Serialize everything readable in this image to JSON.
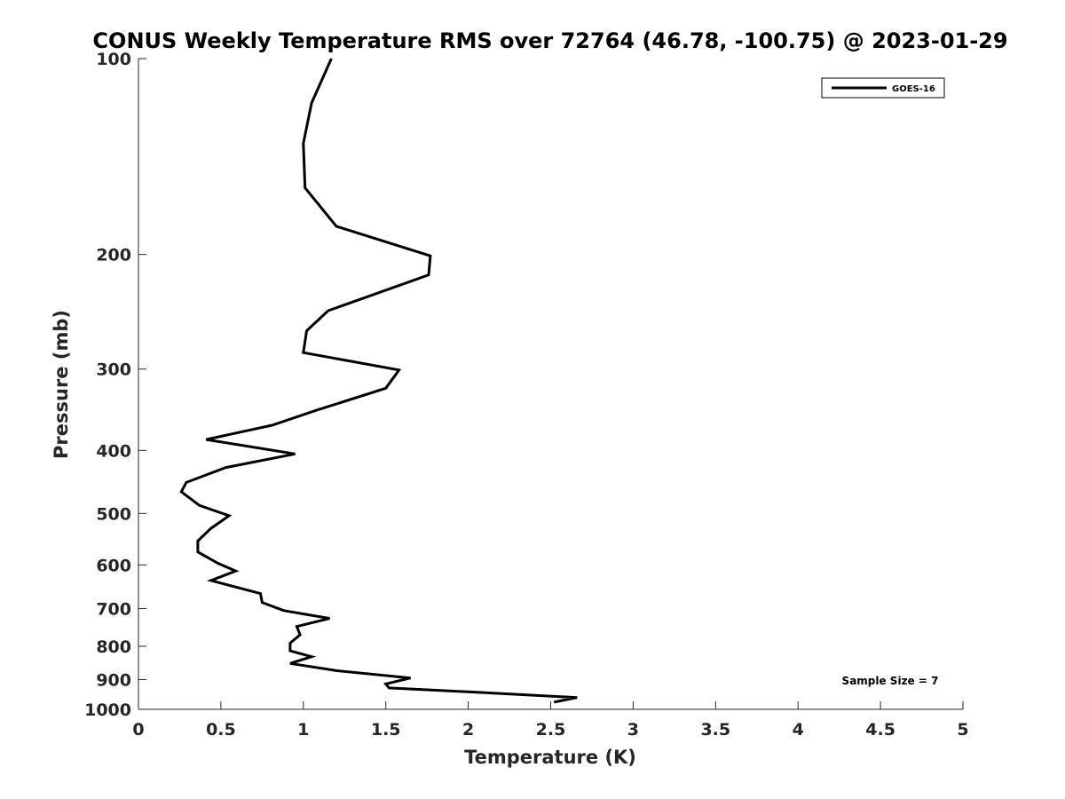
{
  "chart_data": {
    "type": "line",
    "title": "CONUS Weekly Temperature RMS over 72764 (46.78, -100.75) @ 2023-01-29",
    "xlabel": "Temperature (K)",
    "ylabel": "Pressure (mb)",
    "xlim": [
      0,
      5
    ],
    "ylim": [
      100,
      1000
    ],
    "y_scale": "log",
    "y_reversed": true,
    "x_ticks": [
      "0",
      "0.5",
      "1",
      "1.5",
      "2",
      "2.5",
      "3",
      "3.5",
      "4",
      "4.5",
      "5"
    ],
    "y_ticks": [
      "100",
      "200",
      "300",
      "400",
      "500",
      "600",
      "700",
      "800",
      "900",
      "1000"
    ],
    "grid": false,
    "legend_position": "top-right",
    "annotation": "Sample Size = 7",
    "series": [
      {
        "name": "GOES-16",
        "color": "#000000",
        "points": [
          [
            1.17,
            100
          ],
          [
            1.05,
            117
          ],
          [
            1.0,
            135
          ],
          [
            1.01,
            158
          ],
          [
            1.2,
            181
          ],
          [
            1.77,
            201
          ],
          [
            1.76,
            215
          ],
          [
            1.15,
            244
          ],
          [
            1.02,
            262
          ],
          [
            1.0,
            283
          ],
          [
            1.58,
            301
          ],
          [
            1.5,
            321
          ],
          [
            1.08,
            347
          ],
          [
            0.81,
            366
          ],
          [
            0.41,
            385
          ],
          [
            0.95,
            405
          ],
          [
            0.53,
            425
          ],
          [
            0.29,
            448
          ],
          [
            0.26,
            463
          ],
          [
            0.37,
            486
          ],
          [
            0.55,
            504
          ],
          [
            0.44,
            527
          ],
          [
            0.36,
            551
          ],
          [
            0.36,
            573
          ],
          [
            0.48,
            596
          ],
          [
            0.59,
            613
          ],
          [
            0.44,
            634
          ],
          [
            0.74,
            664
          ],
          [
            0.75,
            685
          ],
          [
            0.88,
            705
          ],
          [
            1.16,
            725
          ],
          [
            0.96,
            746
          ],
          [
            0.98,
            768
          ],
          [
            0.92,
            791
          ],
          [
            0.92,
            813
          ],
          [
            1.05,
            830
          ],
          [
            0.92,
            850
          ],
          [
            1.2,
            872
          ],
          [
            1.65,
            895
          ],
          [
            1.5,
            914
          ],
          [
            1.52,
            927
          ],
          [
            2.0,
            940
          ],
          [
            2.66,
            959
          ],
          [
            2.52,
            975
          ]
        ]
      }
    ]
  }
}
